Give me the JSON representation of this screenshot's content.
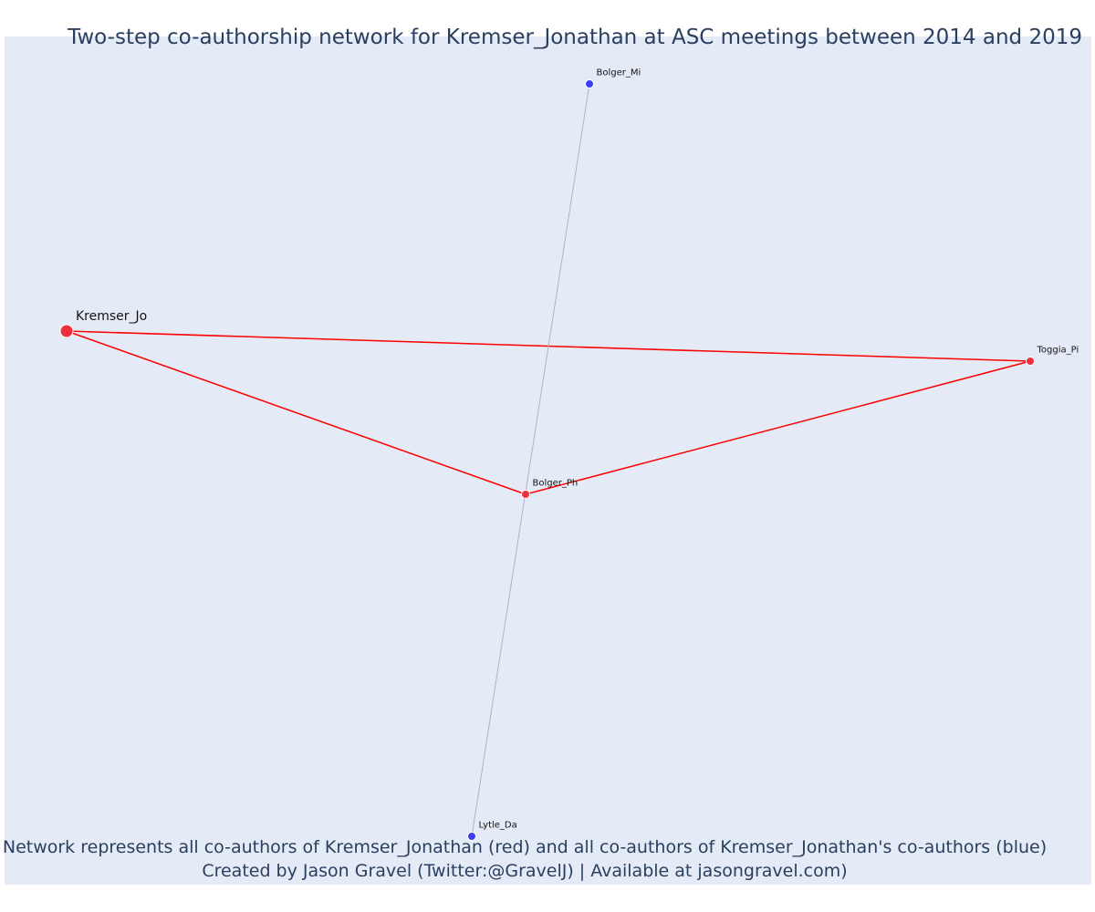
{
  "title": "Two-step co-authorship network for Kremser_Jonathan at ASC meetings between 2014 and 2019",
  "footer": {
    "line1": "Network represents all co-authors of Kremser_Jonathan (red) and all co-authors of Kremser_Jonathan's co-authors (blue)",
    "line2": "Created by Jason Gravel (Twitter:@GravelJ) | Available at jasongravel.com)"
  },
  "colors": {
    "plot_bg": "#e5ebf6",
    "ego": "#ef2f3c",
    "coauthor": "#ef2f3c",
    "second_step": "#3b3ff0",
    "edge_primary": "#ff0000",
    "edge_secondary": "#b0b0c8",
    "text": "#2a3f5f"
  },
  "nodes": [
    {
      "id": "kremser",
      "label": "Kremser_Jo",
      "group": "ego"
    },
    {
      "id": "toggia",
      "label": "Toggia_Pi",
      "group": "coauthor"
    },
    {
      "id": "bolger_ph",
      "label": "Bolger_Ph",
      "group": "coauthor"
    },
    {
      "id": "bolger_mi",
      "label": "Bolger_Mi",
      "group": "second_step"
    },
    {
      "id": "lytle",
      "label": "Lytle_Da",
      "group": "second_step"
    }
  ],
  "edges": [
    {
      "source": "kremser",
      "target": "toggia",
      "type": "primary"
    },
    {
      "source": "kremser",
      "target": "bolger_ph",
      "type": "primary"
    },
    {
      "source": "bolger_ph",
      "target": "toggia",
      "type": "primary"
    },
    {
      "source": "bolger_mi",
      "target": "lytle",
      "type": "secondary"
    }
  ]
}
